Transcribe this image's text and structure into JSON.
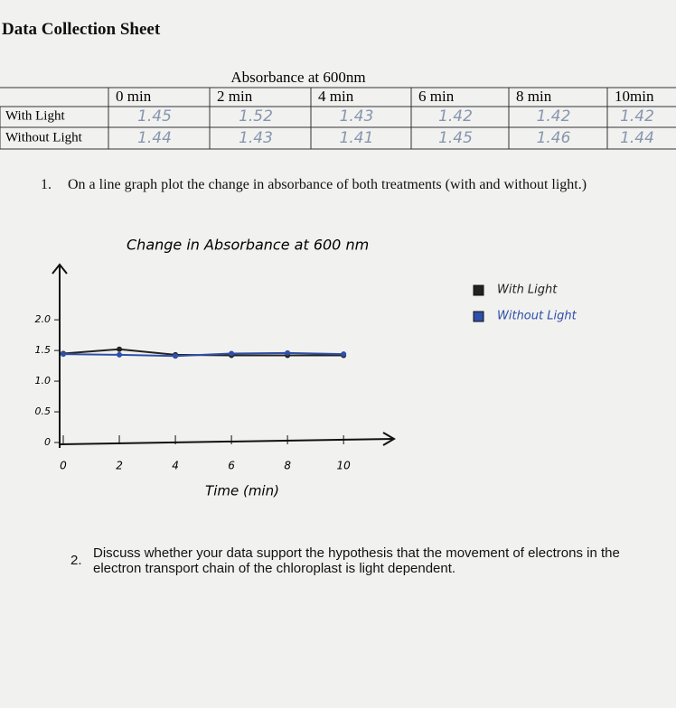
{
  "header": {
    "title": "Data Collection Sheet"
  },
  "table": {
    "group_header": "Absorbance at 600nm",
    "columns": [
      "0 min",
      "2 min",
      "4 min",
      "6 min",
      "8 min",
      "10min"
    ],
    "rows": [
      {
        "label": "With Light",
        "values": [
          1.45,
          1.52,
          1.43,
          1.42,
          1.42,
          1.42
        ]
      },
      {
        "label": "Without Light",
        "values": [
          1.44,
          1.43,
          1.41,
          1.45,
          1.46,
          1.44
        ]
      }
    ]
  },
  "questions": [
    {
      "number": "1.",
      "text": "On a line graph plot the change in absorbance of both treatments (with and without light.)"
    },
    {
      "number": "2.",
      "text": "Discuss whether your data support the hypothesis that the movement of electrons in the electron transport chain of the chloroplast is light dependent."
    }
  ],
  "chart_data": {
    "type": "line",
    "title": "Change in Absorbance at 600 nm",
    "x_label": "Time (min)",
    "x": [
      0,
      2,
      4,
      6,
      8,
      10
    ],
    "xlim": [
      0,
      11.8
    ],
    "xticks": [
      0,
      2,
      4,
      6,
      8,
      10
    ],
    "ylim": [
      0,
      2.9
    ],
    "yticks": [
      0,
      0.5,
      {
        "value": 1,
        "label": "1.0"
      },
      1.5,
      {
        "value": 2,
        "label": "2.0"
      }
    ],
    "series": [
      {
        "name": "With Light",
        "color": "#222222",
        "values": [
          1.45,
          1.52,
          1.43,
          1.42,
          1.42,
          1.42
        ]
      },
      {
        "name": "Without Light",
        "color": "#2f4fa8",
        "values": [
          1.44,
          1.43,
          1.41,
          1.45,
          1.46,
          1.44
        ]
      }
    ]
  }
}
